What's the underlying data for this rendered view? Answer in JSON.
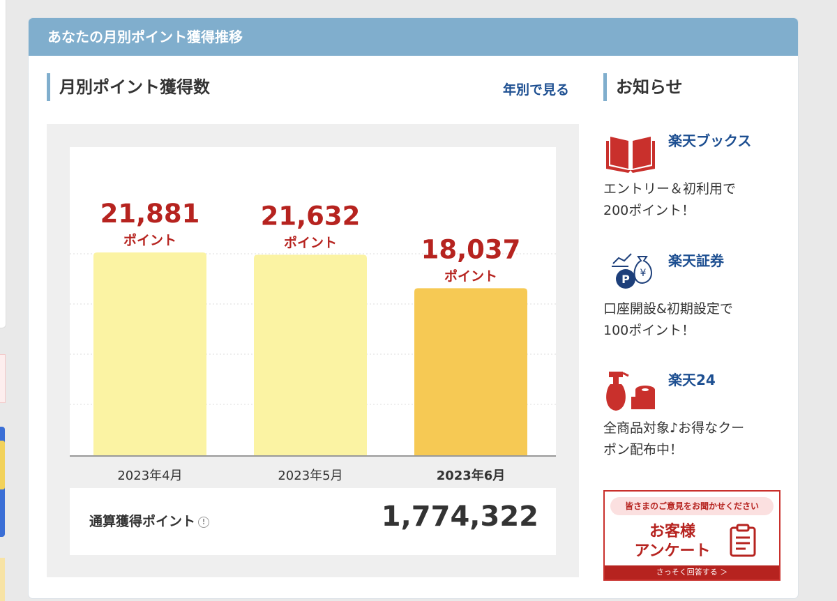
{
  "panel": {
    "title": "あなたの月別ポイント獲得推移"
  },
  "left": {
    "title": "月別ポイント獲得数",
    "yearly_link": "年別で見る"
  },
  "chart_data": {
    "type": "bar",
    "categories": [
      "2023年4月",
      "2023年5月",
      "2023年6月"
    ],
    "values": [
      21881,
      21632,
      18037
    ],
    "value_labels": [
      "21,881",
      "21,632",
      "18,037"
    ],
    "unit_label": "ポイント",
    "current_index": 2,
    "colors": [
      "#fbf3a3",
      "#fbf3a3",
      "#f6c954"
    ],
    "ylim": [
      0,
      25000
    ],
    "grid": true
  },
  "total": {
    "label": "通算獲得ポイント",
    "info_icon": "info-circle-icon",
    "value": "1,774,322"
  },
  "right": {
    "title": "お知らせ",
    "items": [
      {
        "icon": "book-icon",
        "link": "楽天ブックス",
        "desc": "エントリー＆初利用で\n200ポイント！"
      },
      {
        "icon": "securities-icon",
        "link": "楽天証券",
        "desc": "口座開設&初期設定で\n100ポイント！"
      },
      {
        "icon": "household-goods-icon",
        "link": "楽天24",
        "desc": "全商品対象♪お得なクー\nポン配布中！"
      }
    ]
  },
  "survey": {
    "pill": "皆さまのご意見をお聞かせください",
    "title_line1": "お客様",
    "title_line2": "アンケート",
    "footer": "さっそく回答する ＞"
  },
  "colors": {
    "header": "#80aecd",
    "accent_red": "#b6231f",
    "link_blue": "#1d4f91"
  }
}
